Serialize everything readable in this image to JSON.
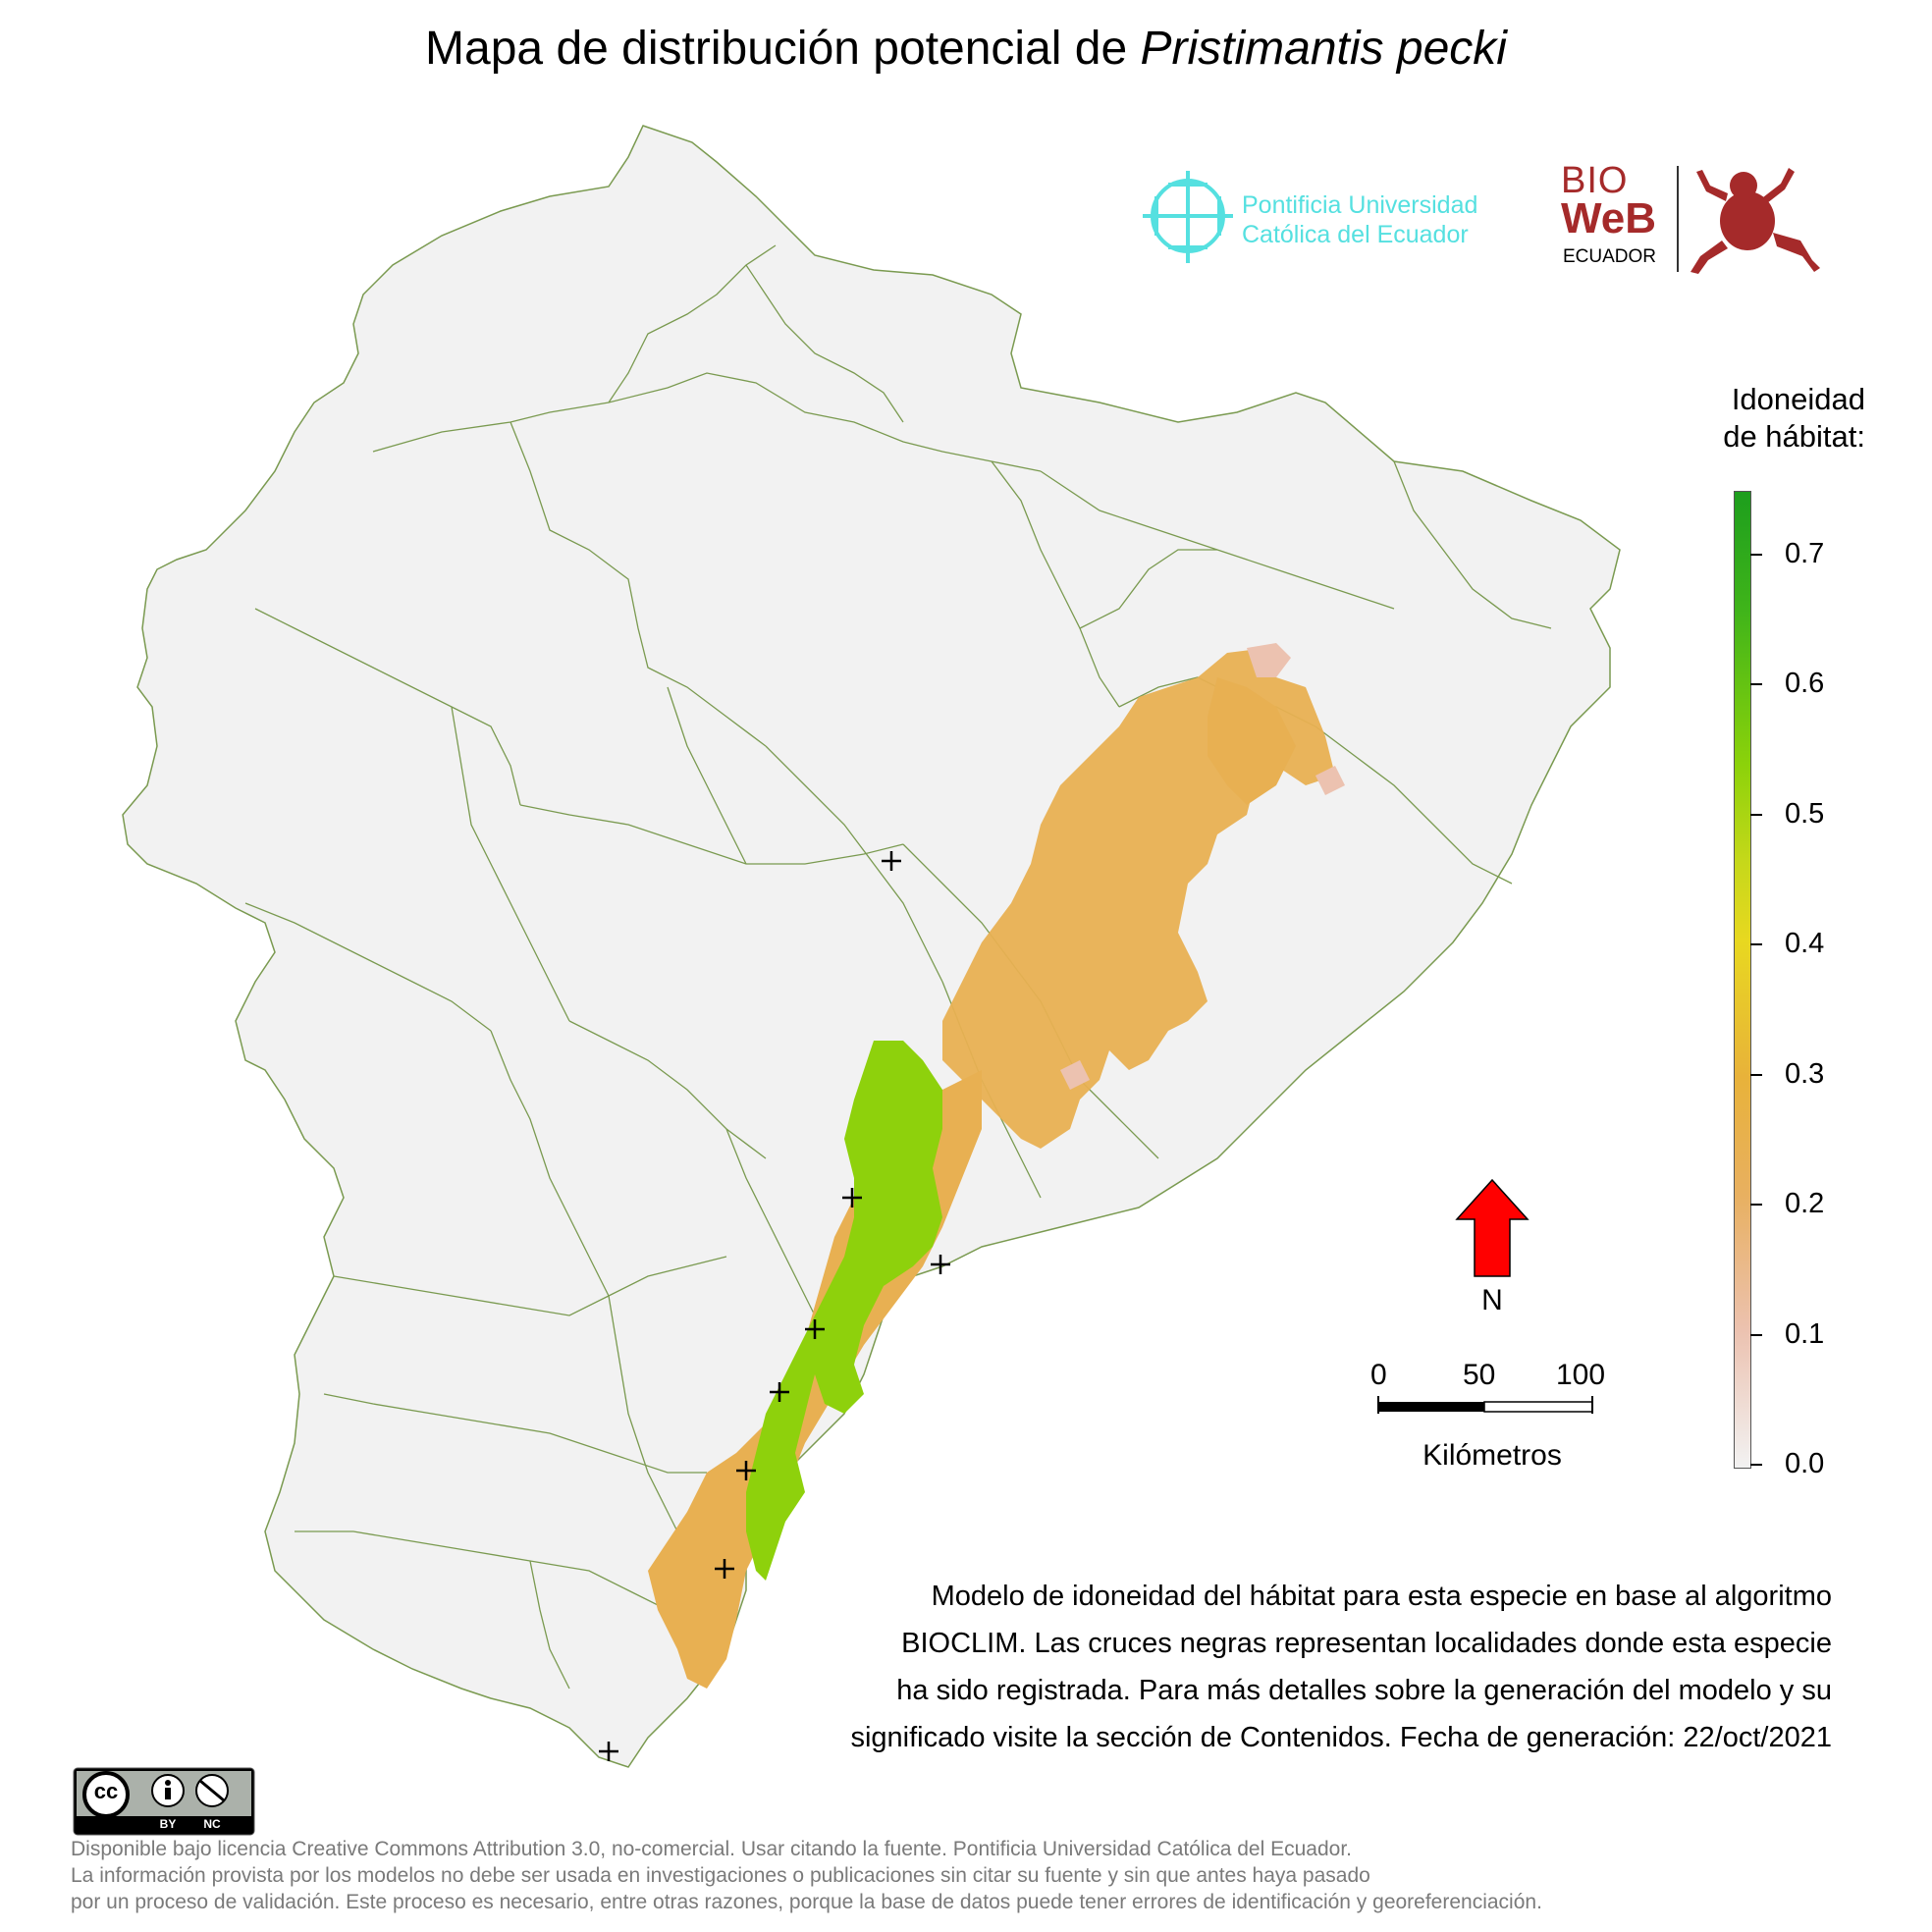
{
  "title": {
    "prefix": "Mapa de distribución potencial de ",
    "species": "Pristimantis pecki"
  },
  "puce_logo": {
    "line1": "Pontificia Universidad",
    "line2": "Católica del Ecuador",
    "color": "#55e0e0"
  },
  "bioweb_logo": {
    "text_bio": "BIO",
    "text_web": "WeB",
    "text_ecuador": "ECUADOR",
    "color": "#a52a2a"
  },
  "legend": {
    "title_line1": "Idoneidad",
    "title_line2": "de hábitat:",
    "ticks": [
      "0.7",
      "0.6",
      "0.5",
      "0.4",
      "0.3",
      "0.2",
      "0.1",
      "0.0"
    ],
    "min": 0.0,
    "max": 0.75,
    "colors": [
      "#f2f2f2",
      "#ecc2b0",
      "#e8b060",
      "#e8d820",
      "#8cd20a",
      "#1d9e1d"
    ]
  },
  "north_arrow": {
    "label": "N",
    "color": "#ff0000"
  },
  "scale_bar": {
    "labels": [
      "0",
      "50",
      "100"
    ],
    "unit": "Kilómetros"
  },
  "records": [
    {
      "label": "record-1"
    },
    {
      "label": "record-2"
    },
    {
      "label": "record-3"
    },
    {
      "label": "record-4"
    },
    {
      "label": "record-5"
    },
    {
      "label": "record-6"
    },
    {
      "label": "record-7"
    },
    {
      "label": "record-8"
    }
  ],
  "description": {
    "line1": "Modelo de idoneidad del hábitat para esta especie en base al algoritmo",
    "line2": "BIOCLIM. Las cruces negras representan localidades donde esta especie",
    "line3": "ha sido registrada. Para más detalles sobre la generación del modelo y su",
    "line4": "significado visite la sección de Contenidos. Fecha de generación: 22/oct/2021"
  },
  "license_badge": {
    "by": "BY",
    "nc": "NC",
    "cc": "cc"
  },
  "footer": {
    "line1": "Disponible bajo licencia Creative Commons Attribution 3.0, no-comercial. Usar citando la fuente. Pontificia Universidad Católica del Ecuador.",
    "line2": "La información provista por los modelos no debe ser usada en investigaciones o publicaciones sin citar su fuente y sin que antes haya pasado",
    "line3": "por un proceso de validación. Este proceso es necesario, entre otras razones, porque la base de datos puede tener errores de identificación y georeferenciación."
  }
}
